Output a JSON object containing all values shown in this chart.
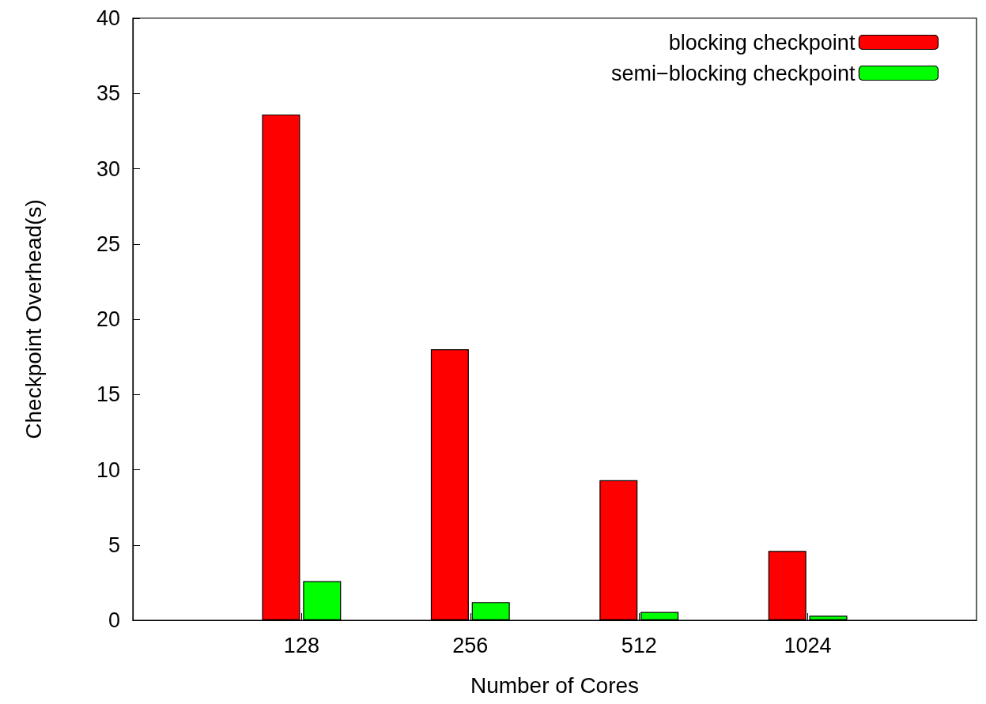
{
  "chart_data": {
    "type": "bar",
    "xlabel": "Number of Cores",
    "ylabel": "Checkpoint Overhead(s)",
    "categories": [
      "128",
      "256",
      "512",
      "1024"
    ],
    "series": [
      {
        "name": "blocking checkpoint",
        "color": "#ff0000",
        "values": [
          33.6,
          18.0,
          9.3,
          4.6
        ]
      },
      {
        "name": "semi−blocking checkpoint",
        "color": "#00ff00",
        "values": [
          2.6,
          1.2,
          0.55,
          0.3
        ]
      }
    ],
    "ylim": [
      0,
      40
    ],
    "yticks": [
      0,
      5,
      10,
      15,
      20,
      25,
      30,
      35,
      40
    ],
    "grid": false,
    "legend": "top right"
  }
}
